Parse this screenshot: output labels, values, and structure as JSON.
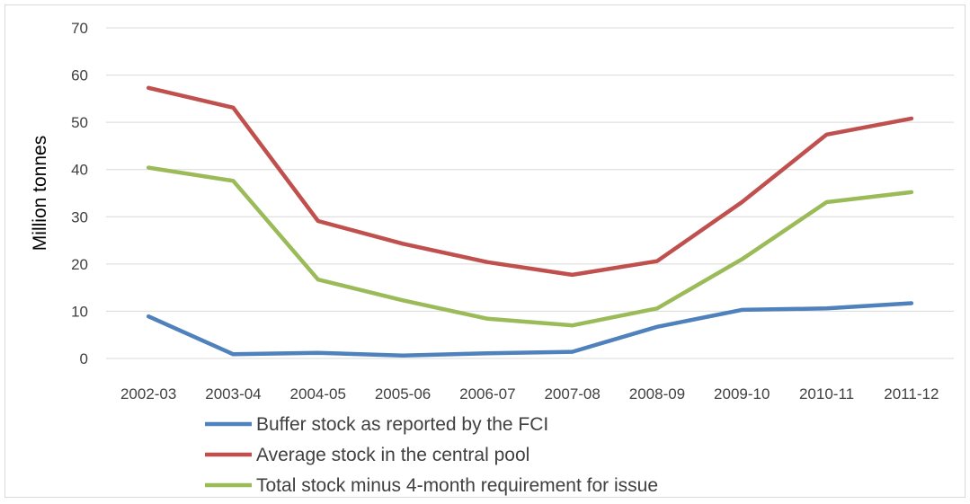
{
  "chart_data": {
    "type": "line",
    "title": "",
    "xlabel": "",
    "ylabel": "Million tonnes",
    "ylim": [
      0,
      70
    ],
    "yticks": [
      0,
      10,
      20,
      30,
      40,
      50,
      60,
      70
    ],
    "grid": true,
    "legend_position": "bottom",
    "categories": [
      "2002-03",
      "2003-04",
      "2004-05",
      "2005-06",
      "2006-07",
      "2007-08",
      "2008-09",
      "2009-10",
      "2010-11",
      "2011-12"
    ],
    "series": [
      {
        "name": "Buffer stock as reported by the FCI",
        "color": "#4f81bd",
        "values": [
          8.9,
          0.9,
          1.2,
          0.6,
          1.1,
          1.4,
          6.7,
          10.3,
          10.6,
          11.7
        ]
      },
      {
        "name": "Average stock in the central pool",
        "color": "#c0504d",
        "values": [
          57.3,
          53.1,
          29.1,
          24.3,
          20.4,
          17.7,
          20.6,
          33.1,
          47.4,
          50.8
        ]
      },
      {
        "name": "Total stock minus 4-month requirement for issue",
        "color": "#9bbb59",
        "values": [
          40.4,
          37.6,
          16.7,
          12.3,
          8.4,
          7.0,
          10.6,
          21.0,
          33.1,
          35.2
        ]
      }
    ]
  }
}
